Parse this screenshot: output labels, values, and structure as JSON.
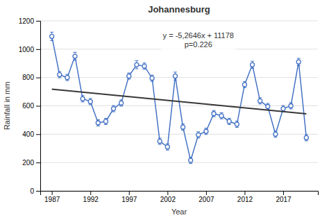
{
  "chart_data": {
    "type": "line",
    "title": "Johannesburg",
    "xlabel": "Year",
    "ylabel": "Rainfall in mm",
    "x": [
      1987,
      1988,
      1989,
      1990,
      1991,
      1992,
      1993,
      1994,
      1995,
      1996,
      1997,
      1998,
      1999,
      2000,
      2001,
      2002,
      2003,
      2004,
      2005,
      2006,
      2007,
      2008,
      2009,
      2010,
      2011,
      2012,
      2013,
      2014,
      2015,
      2016,
      2017,
      2018,
      2019,
      2020
    ],
    "series": [
      {
        "values": [
          1090,
          820,
          800,
          950,
          650,
          630,
          480,
          490,
          580,
          620,
          810,
          890,
          880,
          795,
          350,
          310,
          810,
          450,
          215,
          395,
          420,
          545,
          530,
          490,
          470,
          750,
          890,
          635,
          595,
          400,
          580,
          600,
          910,
          375
        ],
        "errors": [
          30,
          22,
          22,
          28,
          22,
          22,
          22,
          22,
          22,
          22,
          22,
          28,
          22,
          22,
          22,
          22,
          28,
          22,
          22,
          22,
          22,
          22,
          22,
          22,
          22,
          22,
          25,
          22,
          22,
          22,
          22,
          22,
          25,
          22
        ],
        "color": "#4472C4",
        "marker": "circle",
        "line_style": "solid"
      },
      {
        "type": "line",
        "x": [
          1987,
          2020
        ],
        "values": [
          717.2398,
          543.508
        ],
        "color": "#383838",
        "line_style": "solid"
      }
    ],
    "annotations": [
      {
        "lines": [
          "y = -5,2646x + 11178",
          "p=0.226"
        ],
        "x": 2006,
        "y": 1130
      }
    ],
    "xlim": [
      1985.5,
      2021.5
    ],
    "xticks": [
      1987,
      1992,
      1997,
      2002,
      2007,
      2012,
      2017
    ],
    "ylim": [
      0,
      1200
    ],
    "yticks": [
      0,
      200,
      400,
      600,
      800,
      1000,
      1200
    ],
    "grid": true
  }
}
